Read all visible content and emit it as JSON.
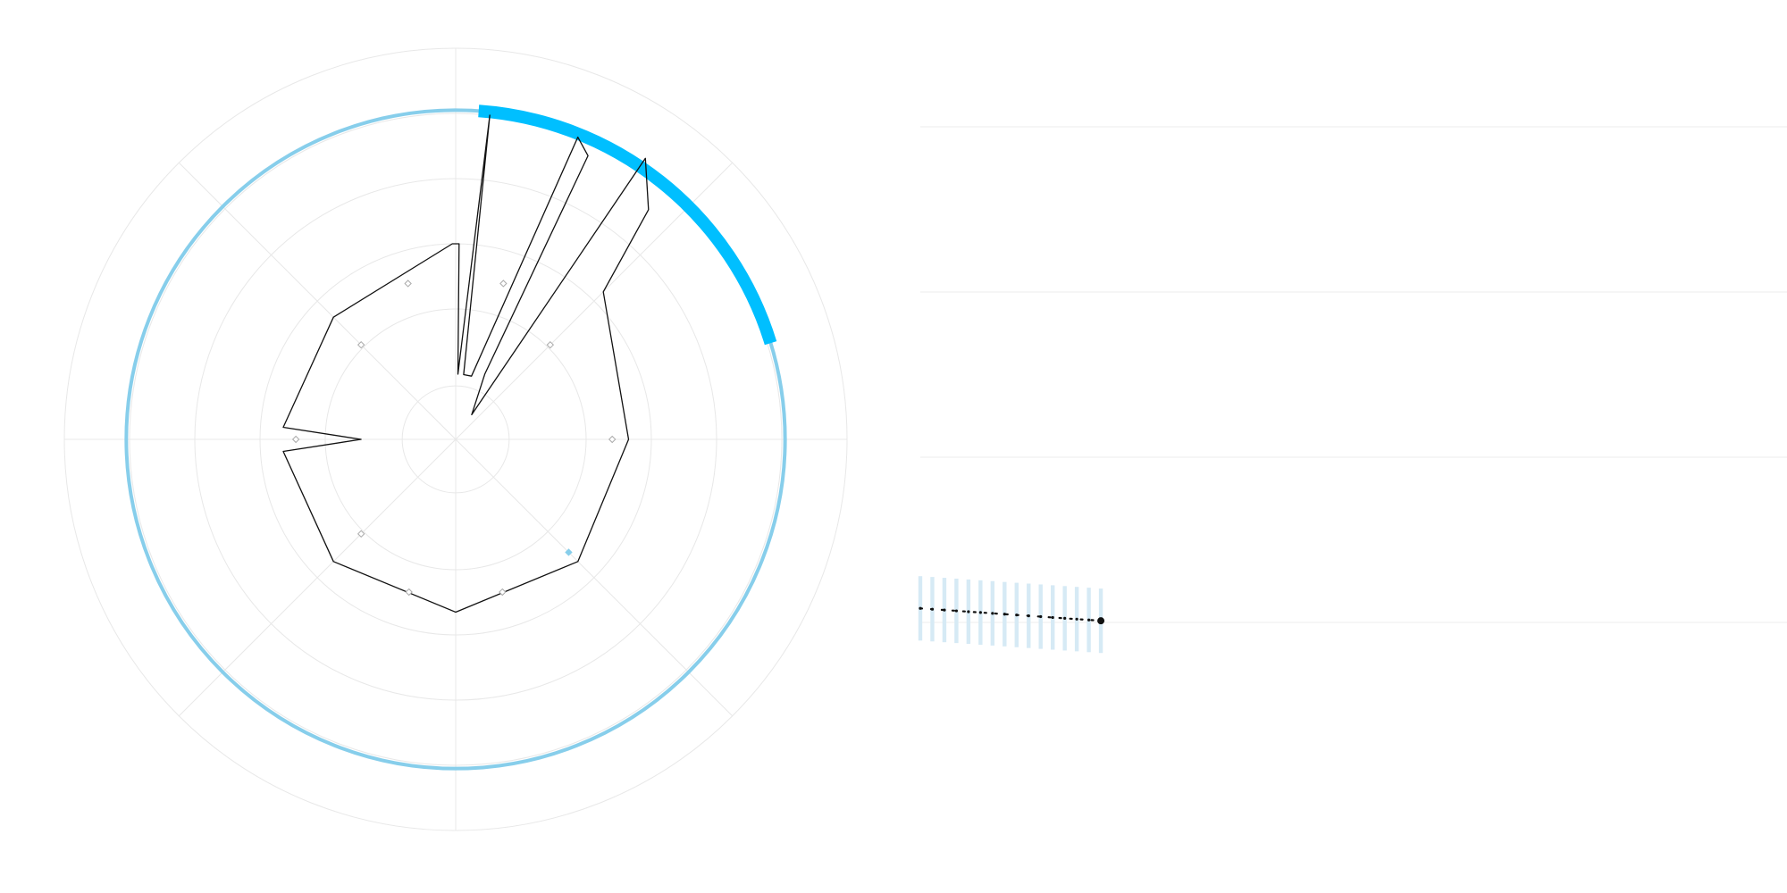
{
  "chart_data": [
    {
      "type": "polar-line",
      "title": "",
      "angles_deg": [
        0,
        30,
        60,
        90,
        120,
        150,
        180,
        210,
        240,
        270,
        300,
        330,
        5,
        15,
        25,
        35
      ],
      "radial_grid_rings": 6,
      "angular_grid_spokes": 8,
      "radar_series": {
        "name": "",
        "points": [
          {
            "angle_deg": 0,
            "r": 3.0
          },
          {
            "angle_deg": 1,
            "r": 3.0
          },
          {
            "angle_deg": 2,
            "r": 1.0
          },
          {
            "angle_deg": 6,
            "r": 5.0
          },
          {
            "angle_deg": 7,
            "r": 1.0
          },
          {
            "angle_deg": 14,
            "r": 1.0
          },
          {
            "angle_deg": 22,
            "r": 5.0
          },
          {
            "angle_deg": 25,
            "r": 4.8
          },
          {
            "angle_deg": 24,
            "r": 1.1
          },
          {
            "angle_deg": 33,
            "r": 0.45
          },
          {
            "angle_deg": 34,
            "r": 5.2
          },
          {
            "angle_deg": 40,
            "r": 4.6
          },
          {
            "angle_deg": 45,
            "r": 3.2
          },
          {
            "angle_deg": 90,
            "r": 2.65
          },
          {
            "angle_deg": 135,
            "r": 2.65
          },
          {
            "angle_deg": 180,
            "r": 2.65
          },
          {
            "angle_deg": 225,
            "r": 2.65
          },
          {
            "angle_deg": 266,
            "r": 2.65
          },
          {
            "angle_deg": 270,
            "r": 1.45
          },
          {
            "angle_deg": 274,
            "r": 2.65
          },
          {
            "angle_deg": 315,
            "r": 2.65
          },
          {
            "angle_deg": 359,
            "r": 3.0
          }
        ]
      },
      "markers": [
        {
          "angle_deg": 17,
          "r": 2.5,
          "highlight": false
        },
        {
          "angle_deg": 45,
          "r": 2.05,
          "highlight": false
        },
        {
          "angle_deg": 90,
          "r": 2.4,
          "highlight": false
        },
        {
          "angle_deg": 135,
          "r": 2.45,
          "highlight": true
        },
        {
          "angle_deg": 163,
          "r": 2.45,
          "highlight": false
        },
        {
          "angle_deg": 197,
          "r": 2.45,
          "highlight": false
        },
        {
          "angle_deg": 225,
          "r": 2.05,
          "highlight": false
        },
        {
          "angle_deg": 270,
          "r": 2.45,
          "highlight": false
        },
        {
          "angle_deg": 315,
          "r": 2.05,
          "highlight": false
        },
        {
          "angle_deg": 343,
          "r": 2.5,
          "highlight": false
        }
      ],
      "ring_track": {
        "r": 5.05,
        "color": "#87ceeb"
      },
      "ring_highlight": {
        "start_deg": 4,
        "end_deg": 73,
        "color": "#00bfff"
      },
      "colors": {
        "grid": "#e8e8e8",
        "line": "#111111",
        "marker": "#aaaaaa",
        "marker_highlight": "#87ceeb"
      }
    },
    {
      "type": "line",
      "title": "",
      "xlabel": "",
      "ylabel": "",
      "grid": true,
      "ylim": [
        0,
        4
      ],
      "gridlines_y": [
        0,
        1,
        2,
        3,
        4
      ],
      "x": [
        0,
        1,
        2,
        3,
        4,
        5,
        6,
        7,
        8,
        9,
        10,
        11,
        12,
        13,
        14,
        15
      ],
      "xlim": [
        0,
        72
      ],
      "series": [
        {
          "name": "",
          "values": [
            1.085,
            1.08,
            1.075,
            1.07,
            1.065,
            1.06,
            1.055,
            1.05,
            1.045,
            1.04,
            1.035,
            1.03,
            1.025,
            1.02,
            1.015,
            1.01
          ],
          "band_half_width": [
            0.195,
            0.195,
            0.195,
            0.195,
            0.195,
            0.195,
            0.195,
            0.195,
            0.195,
            0.195,
            0.195,
            0.195,
            0.195,
            0.195,
            0.195,
            0.195
          ]
        }
      ],
      "colors": {
        "line": "#111111",
        "band": "#d6eaf5",
        "grid": "#eeeeee"
      }
    }
  ]
}
